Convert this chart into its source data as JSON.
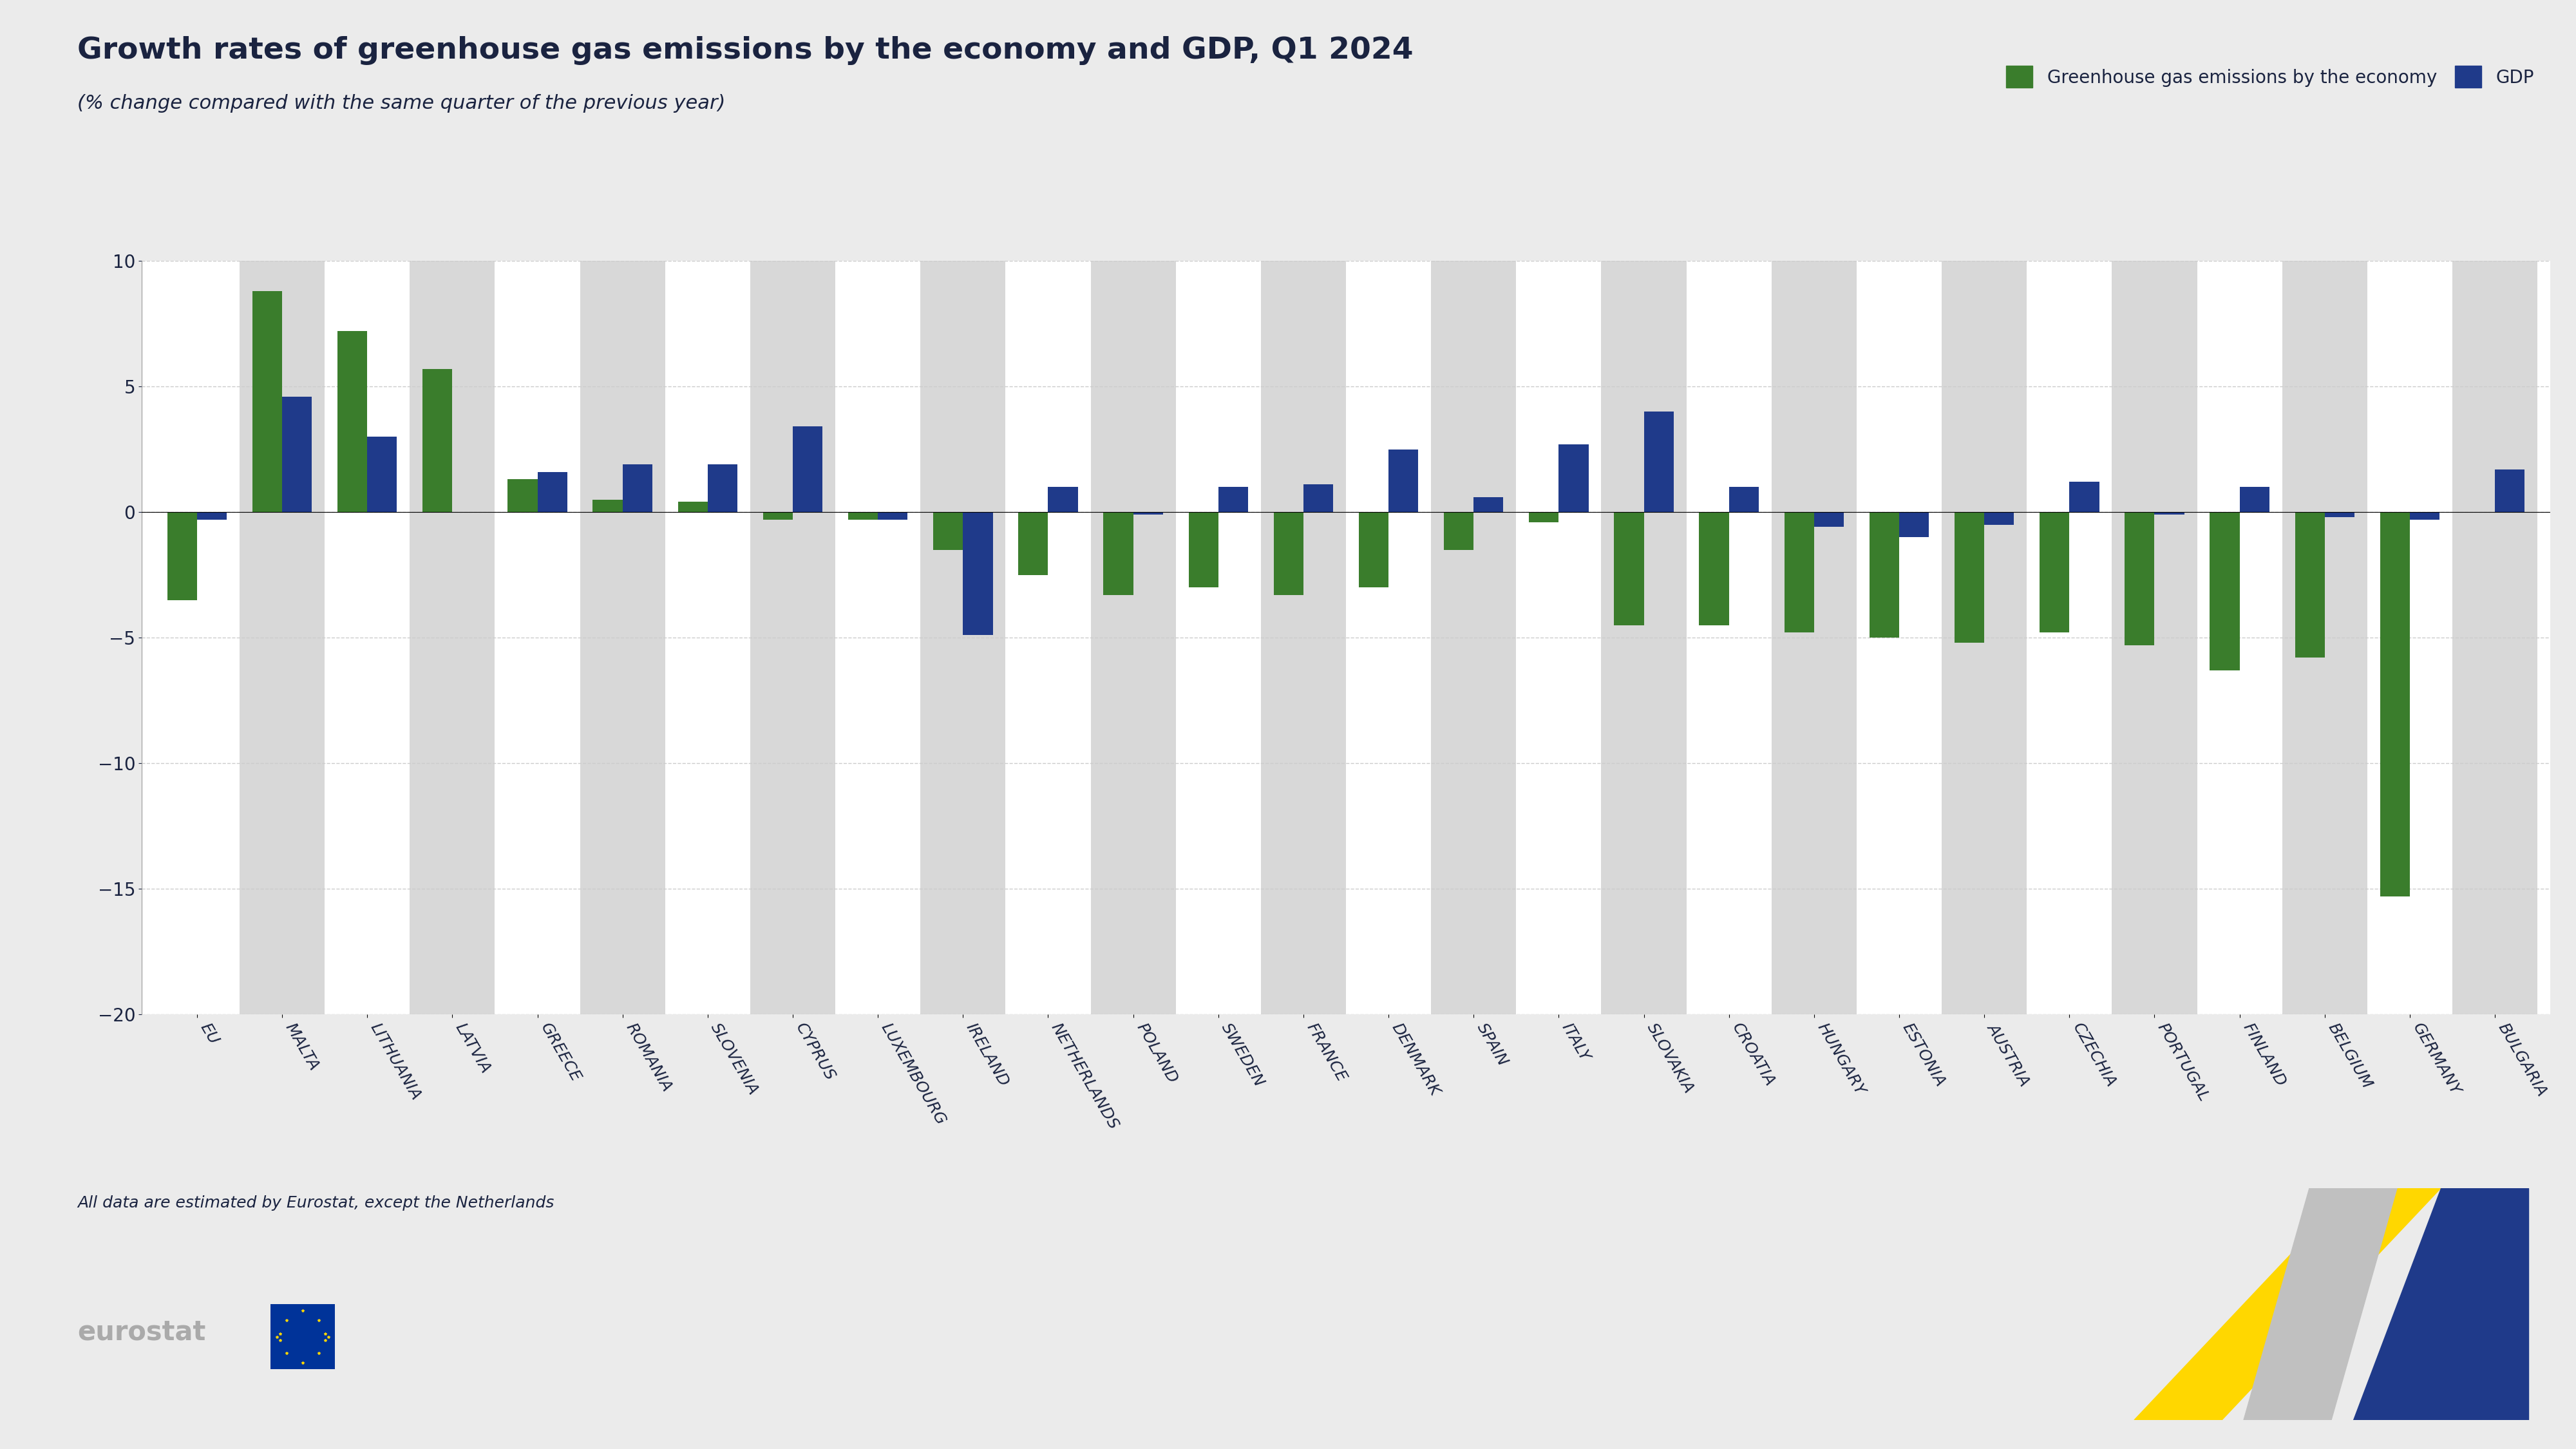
{
  "title": "Growth rates of greenhouse gas emissions by the economy and GDP, Q1 2024",
  "subtitle": "(% change compared with the same quarter of the previous year)",
  "categories": [
    "EU",
    "MALTA",
    "LITHUANIA",
    "LATVIA",
    "GREECE",
    "ROMANIA",
    "SLOVENIA",
    "CYPRUS",
    "LUXEMBOURG",
    "IRELAND",
    "NETHERLANDS",
    "POLAND",
    "SWEDEN",
    "FRANCE",
    "DENMARK",
    "SPAIN",
    "ITALY",
    "SLOVAKIA",
    "CROATIA",
    "HUNGARY",
    "ESTONIA",
    "AUSTRIA",
    "CZECHIA",
    "PORTUGAL",
    "FINLAND",
    "BELGIUM",
    "GERMANY",
    "BULGARIA"
  ],
  "ghg_values": [
    -3.5,
    8.8,
    7.2,
    5.7,
    1.3,
    0.5,
    0.4,
    -0.3,
    -0.3,
    -1.5,
    -2.5,
    -3.3,
    -3.0,
    -3.3,
    -3.0,
    -1.5,
    -0.4,
    -4.5,
    -4.5,
    -4.8,
    -5.0,
    -5.2,
    -4.8,
    -5.3,
    -6.3,
    -5.8,
    -15.3,
    null
  ],
  "gdp_values": [
    -0.3,
    4.6,
    3.0,
    null,
    1.6,
    1.9,
    1.9,
    3.4,
    -0.3,
    -4.9,
    1.0,
    -0.1,
    1.0,
    1.1,
    2.5,
    0.6,
    2.7,
    4.0,
    1.0,
    -0.6,
    -1.0,
    -0.5,
    1.2,
    -0.1,
    1.0,
    -0.2,
    -0.3,
    1.7
  ],
  "ghg_color": "#3a7d2c",
  "gdp_color": "#1f3a8a",
  "background_color": "#ebebeb",
  "plot_bg_color": "#ffffff",
  "stripe_color": "#d8d8d8",
  "ylim": [
    -20,
    10
  ],
  "yticks": [
    -20,
    -15,
    -10,
    -5,
    0,
    5,
    10
  ],
  "footnote": "All data are estimated by Eurostat, except the Netherlands",
  "legend_label_ghg": "Greenhouse gas emissions by the economy",
  "legend_label_gdp": "GDP",
  "title_color": "#1a2340",
  "text_color": "#1a2340"
}
